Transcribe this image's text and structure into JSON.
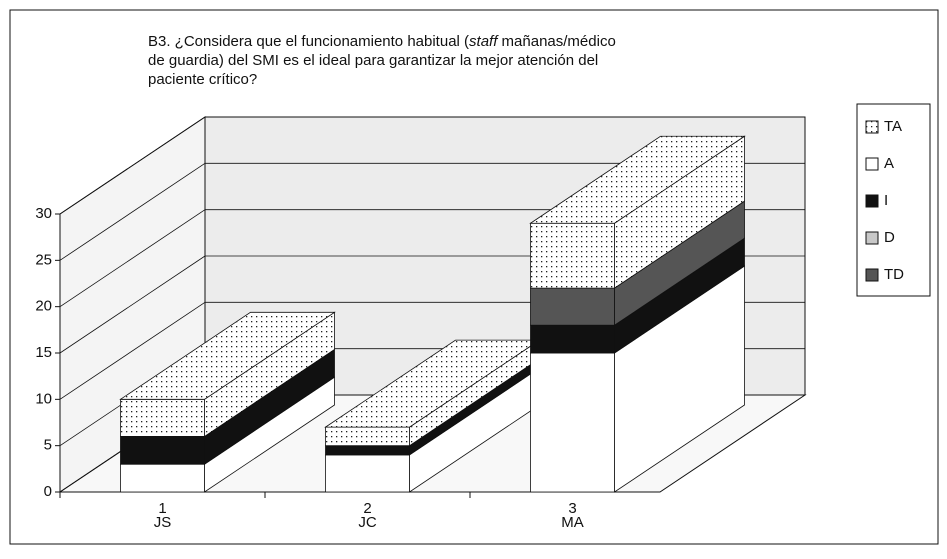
{
  "chart_data": {
    "type": "bar3d_stacked",
    "title": {
      "line1_before": "B3. ¿Considera que el funcionamiento habitual (",
      "line1_italic": "staff",
      "line1_after": " mañanas/médico",
      "line2": "de guardia) del SMI es el ideal para garantizar la mejor atención del",
      "line3": "paciente crítico?"
    },
    "categories": [
      "1",
      "2",
      "3"
    ],
    "category_labels": [
      "JS",
      "JC",
      "MA"
    ],
    "series": [
      {
        "name": "A",
        "color": "#ffffff",
        "values": [
          3,
          4,
          15
        ]
      },
      {
        "name": "I",
        "color": "#111111",
        "values": [
          3,
          1,
          3
        ]
      },
      {
        "name": "D",
        "color": "#c8c8c8",
        "values": [
          0,
          0,
          0
        ]
      },
      {
        "name": "TD",
        "color": "#555555",
        "values": [
          0,
          0,
          4
        ]
      },
      {
        "name": "TA",
        "color": "#ffffff",
        "pattern": "dots",
        "values": [
          4,
          2,
          7
        ]
      }
    ],
    "legend_order": [
      4,
      0,
      1,
      2,
      3
    ],
    "legend": "right",
    "ylim": [
      0,
      30
    ],
    "yticks": [
      0,
      5,
      10,
      15,
      20,
      25,
      30
    ],
    "grid": true
  }
}
